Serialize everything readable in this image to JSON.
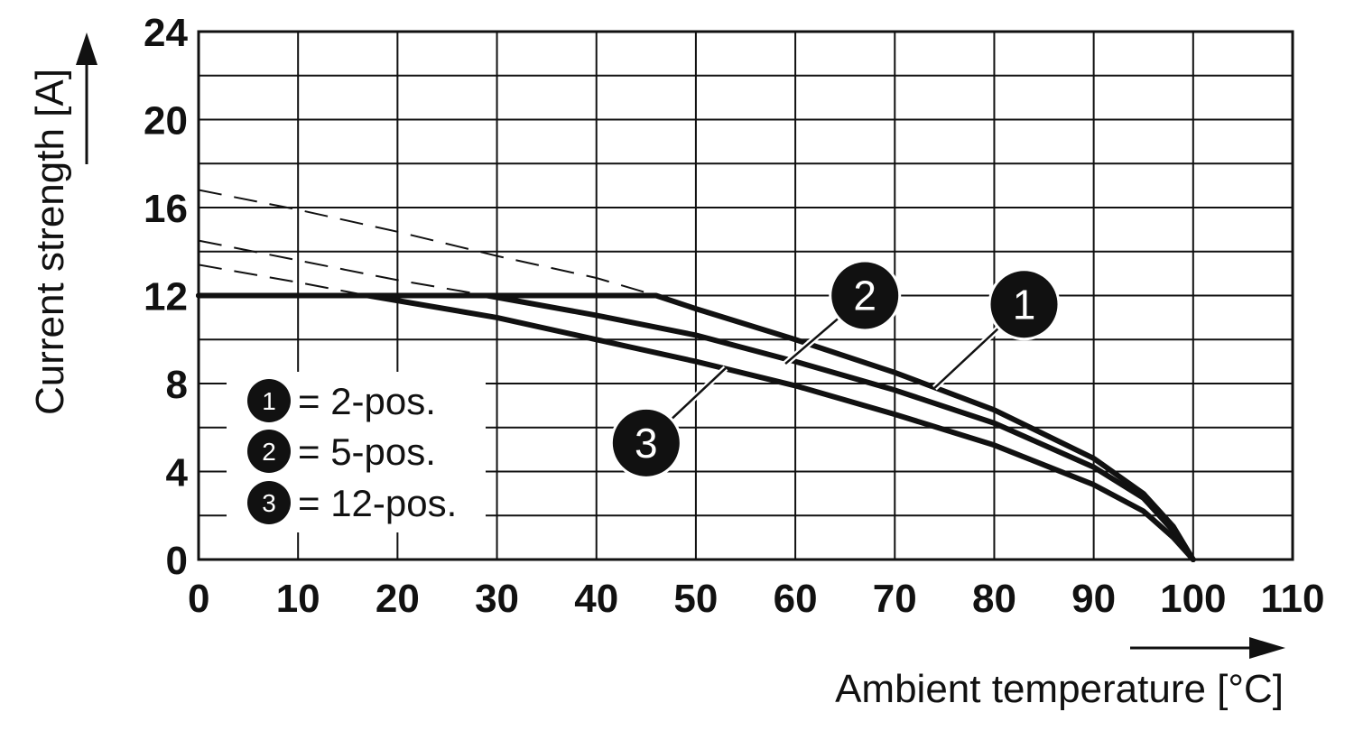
{
  "chart_data": {
    "type": "line",
    "xlabel": "Ambient temperature [°C]",
    "ylabel": "Current strength [A]",
    "xlim": [
      0,
      110
    ],
    "ylim": [
      0,
      24
    ],
    "x_ticks": [
      "0",
      "10",
      "20",
      "30",
      "40",
      "50",
      "60",
      "70",
      "80",
      "90",
      "100",
      "110"
    ],
    "y_ticks": [
      "0",
      "4",
      "8",
      "12",
      "16",
      "20",
      "24"
    ],
    "grid": true,
    "legend": {
      "placement": "bottom-left",
      "items": [
        {
          "marker": "1",
          "label": "= 2-pos."
        },
        {
          "marker": "2",
          "label": "= 5-pos."
        },
        {
          "marker": "3",
          "label": "= 12-pos."
        }
      ]
    },
    "series": [
      {
        "marker": "1",
        "solid": [
          [
            0,
            12
          ],
          [
            46,
            12
          ],
          [
            50,
            11.4
          ],
          [
            60,
            10
          ],
          [
            70,
            8.5
          ],
          [
            80,
            6.8
          ],
          [
            90,
            4.6
          ],
          [
            95,
            3.0
          ],
          [
            98,
            1.5
          ],
          [
            100,
            0
          ]
        ],
        "dashed": [
          [
            0,
            16.8
          ],
          [
            10,
            15.9
          ],
          [
            20,
            14.9
          ],
          [
            30,
            13.8
          ],
          [
            40,
            12.8
          ],
          [
            46,
            12
          ]
        ]
      },
      {
        "marker": "2",
        "solid": [
          [
            0,
            12
          ],
          [
            29,
            12
          ],
          [
            40,
            11.1
          ],
          [
            50,
            10.2
          ],
          [
            60,
            9.0
          ],
          [
            70,
            7.7
          ],
          [
            80,
            6.2
          ],
          [
            90,
            4.2
          ],
          [
            95,
            2.8
          ],
          [
            98,
            1.3
          ],
          [
            100,
            0
          ]
        ],
        "dashed": [
          [
            0,
            14.5
          ],
          [
            10,
            13.6
          ],
          [
            20,
            12.7
          ],
          [
            29,
            12
          ]
        ]
      },
      {
        "marker": "3",
        "solid": [
          [
            0,
            12
          ],
          [
            17,
            12
          ],
          [
            30,
            11.0
          ],
          [
            40,
            10.0
          ],
          [
            50,
            9.0
          ],
          [
            60,
            7.9
          ],
          [
            70,
            6.6
          ],
          [
            80,
            5.2
          ],
          [
            90,
            3.4
          ],
          [
            95,
            2.2
          ],
          [
            98,
            1.0
          ],
          [
            100,
            0
          ]
        ],
        "dashed": [
          [
            0,
            13.4
          ],
          [
            10,
            12.6
          ],
          [
            17,
            12
          ]
        ]
      }
    ],
    "callouts": [
      {
        "marker": "1",
        "target": [
          74,
          7.8
        ],
        "label_at": [
          83,
          11.6
        ]
      },
      {
        "marker": "2",
        "target": [
          59,
          8.9
        ],
        "label_at": [
          67,
          12
        ]
      },
      {
        "marker": "3",
        "target": [
          53,
          8.7
        ],
        "label_at": [
          45,
          5.3
        ]
      }
    ]
  }
}
